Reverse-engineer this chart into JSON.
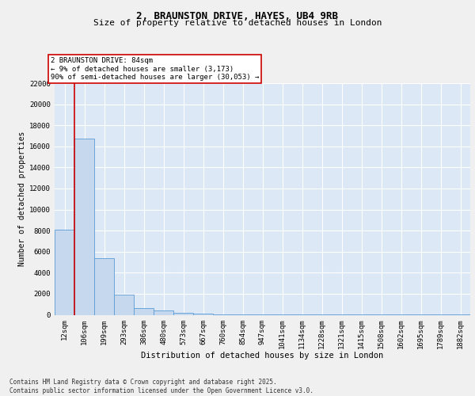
{
  "title1": "2, BRAUNSTON DRIVE, HAYES, UB4 9RB",
  "title2": "Size of property relative to detached houses in London",
  "xlabel": "Distribution of detached houses by size in London",
  "ylabel": "Number of detached properties",
  "categories": [
    "12sqm",
    "106sqm",
    "199sqm",
    "293sqm",
    "386sqm",
    "480sqm",
    "573sqm",
    "667sqm",
    "760sqm",
    "854sqm",
    "947sqm",
    "1041sqm",
    "1134sqm",
    "1228sqm",
    "1321sqm",
    "1415sqm",
    "1508sqm",
    "1602sqm",
    "1695sqm",
    "1789sqm",
    "1882sqm"
  ],
  "values": [
    8100,
    16700,
    5400,
    1900,
    650,
    400,
    180,
    90,
    50,
    30,
    20,
    15,
    10,
    8,
    6,
    5,
    4,
    3,
    3,
    2,
    2
  ],
  "bar_color": "#c5d8ee",
  "bar_edge_color": "#5b9bd5",
  "background_color": "#dce8f5",
  "grid_color": "#ffffff",
  "annotation_text": "2 BRAUNSTON DRIVE: 84sqm\n← 9% of detached houses are smaller (3,173)\n90% of semi-detached houses are larger (30,053) →",
  "annotation_box_color": "#ffffff",
  "annotation_box_edge": "#cc0000",
  "vline_x": 0.5,
  "vline_color": "#cc0000",
  "ylim": [
    0,
    22000
  ],
  "yticks": [
    0,
    2000,
    4000,
    6000,
    8000,
    10000,
    12000,
    14000,
    16000,
    18000,
    20000,
    22000
  ],
  "footer_text": "Contains HM Land Registry data © Crown copyright and database right 2025.\nContains public sector information licensed under the Open Government Licence v3.0.",
  "title1_fontsize": 9,
  "title2_fontsize": 8,
  "xlabel_fontsize": 7.5,
  "ylabel_fontsize": 7,
  "tick_fontsize": 6.5,
  "annotation_fontsize": 6.5,
  "footer_fontsize": 5.5
}
